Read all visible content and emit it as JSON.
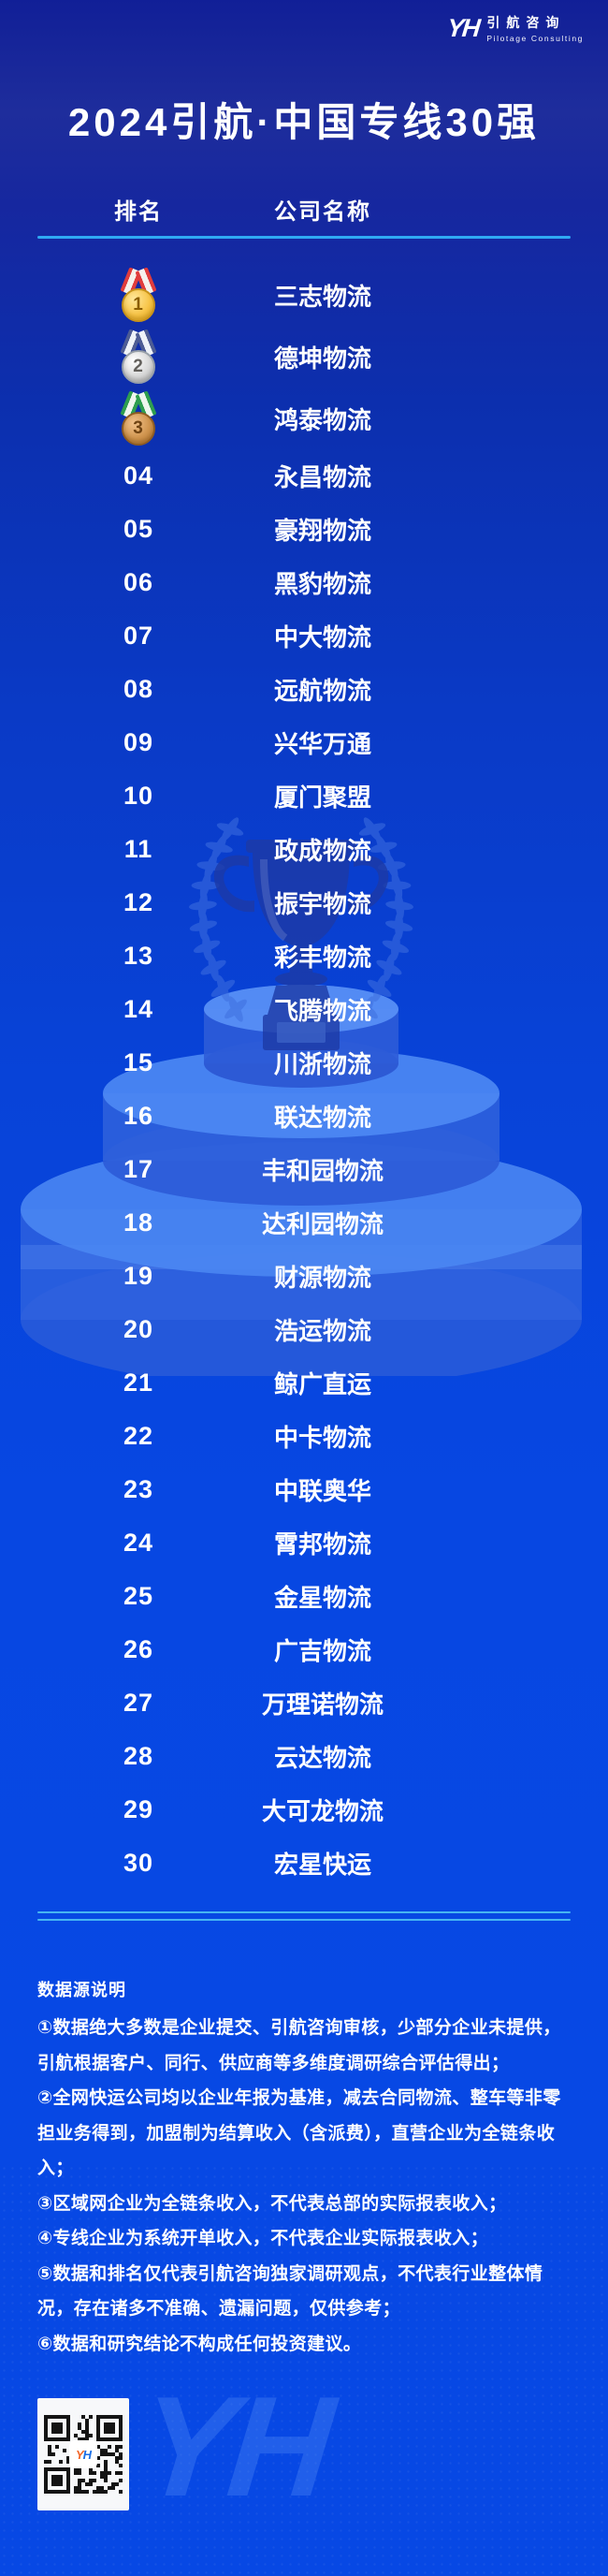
{
  "brand": {
    "logo_text": "YH",
    "logo_y": "Y",
    "logo_h": "H",
    "name_cn": "引航咨询",
    "name_en": "Pilotage Consulting"
  },
  "header": {
    "title": "2024引航·中国专线30强"
  },
  "table": {
    "columns": {
      "rank": "排名",
      "company": "公司名称"
    },
    "rows": [
      {
        "rank": "1",
        "medal": "gold",
        "company": "三志物流"
      },
      {
        "rank": "2",
        "medal": "silver",
        "company": "德坤物流"
      },
      {
        "rank": "3",
        "medal": "bronze",
        "company": "鸿泰物流"
      },
      {
        "rank": "04",
        "company": "永昌物流"
      },
      {
        "rank": "05",
        "company": "豪翔物流"
      },
      {
        "rank": "06",
        "company": "黑豹物流"
      },
      {
        "rank": "07",
        "company": "中大物流"
      },
      {
        "rank": "08",
        "company": "远航物流"
      },
      {
        "rank": "09",
        "company": "兴华万通"
      },
      {
        "rank": "10",
        "company": "厦门聚盟"
      },
      {
        "rank": "11",
        "company": "政成物流"
      },
      {
        "rank": "12",
        "company": "振宇物流"
      },
      {
        "rank": "13",
        "company": "彩丰物流"
      },
      {
        "rank": "14",
        "company": "飞腾物流"
      },
      {
        "rank": "15",
        "company": "川浙物流"
      },
      {
        "rank": "16",
        "company": "联达物流"
      },
      {
        "rank": "17",
        "company": "丰和园物流"
      },
      {
        "rank": "18",
        "company": "达利园物流"
      },
      {
        "rank": "19",
        "company": "财源物流"
      },
      {
        "rank": "20",
        "company": "浩运物流"
      },
      {
        "rank": "21",
        "company": "鲸广直运"
      },
      {
        "rank": "22",
        "company": "中卡物流"
      },
      {
        "rank": "23",
        "company": "中联奥华"
      },
      {
        "rank": "24",
        "company": "霄邦物流"
      },
      {
        "rank": "25",
        "company": "金星物流"
      },
      {
        "rank": "26",
        "company": "广吉物流"
      },
      {
        "rank": "27",
        "company": "万理诺物流"
      },
      {
        "rank": "28",
        "company": "云达物流"
      },
      {
        "rank": "29",
        "company": "大可龙物流"
      },
      {
        "rank": "30",
        "company": "宏星快运"
      }
    ]
  },
  "footer": {
    "notes_title": "数据源说明",
    "notes": [
      "①数据绝大多数是企业提交、引航咨询审核，少部分企业未提供，引航根据客户、同行、供应商等多维度调研综合评估得出；",
      "②全网快运公司均以企业年报为基准，减去合同物流、整车等非零担业务得到，加盟制为结算收入（含派费），直营企业为全链条收入；",
      "③区域网企业为全链条收入，不代表总部的实际报表收入；",
      "④专线企业为系统开单收入，不代表企业实际报表收入；",
      "⑤数据和排名仅代表引航咨询独家调研观点，不代表行业整体情况，存在诸多不准确、遗漏问题，仅供参考；",
      "⑥数据和研究结论不构成任何投资建议。"
    ]
  },
  "icons": {
    "gold": "gold-medal-icon",
    "silver": "silver-medal-icon",
    "bronze": "bronze-medal-icon",
    "watermark": "trophy-podium-watermark",
    "qr": "qr-code"
  },
  "colors": {
    "background_top": "#111f97",
    "background_bottom": "#0748e4",
    "accent_line": "#2fa9f3",
    "footer_line": "#46b5f2",
    "text": "#ffffff",
    "gold": "#f7c549",
    "silver": "#d9d9d9",
    "bronze": "#d0954f"
  }
}
